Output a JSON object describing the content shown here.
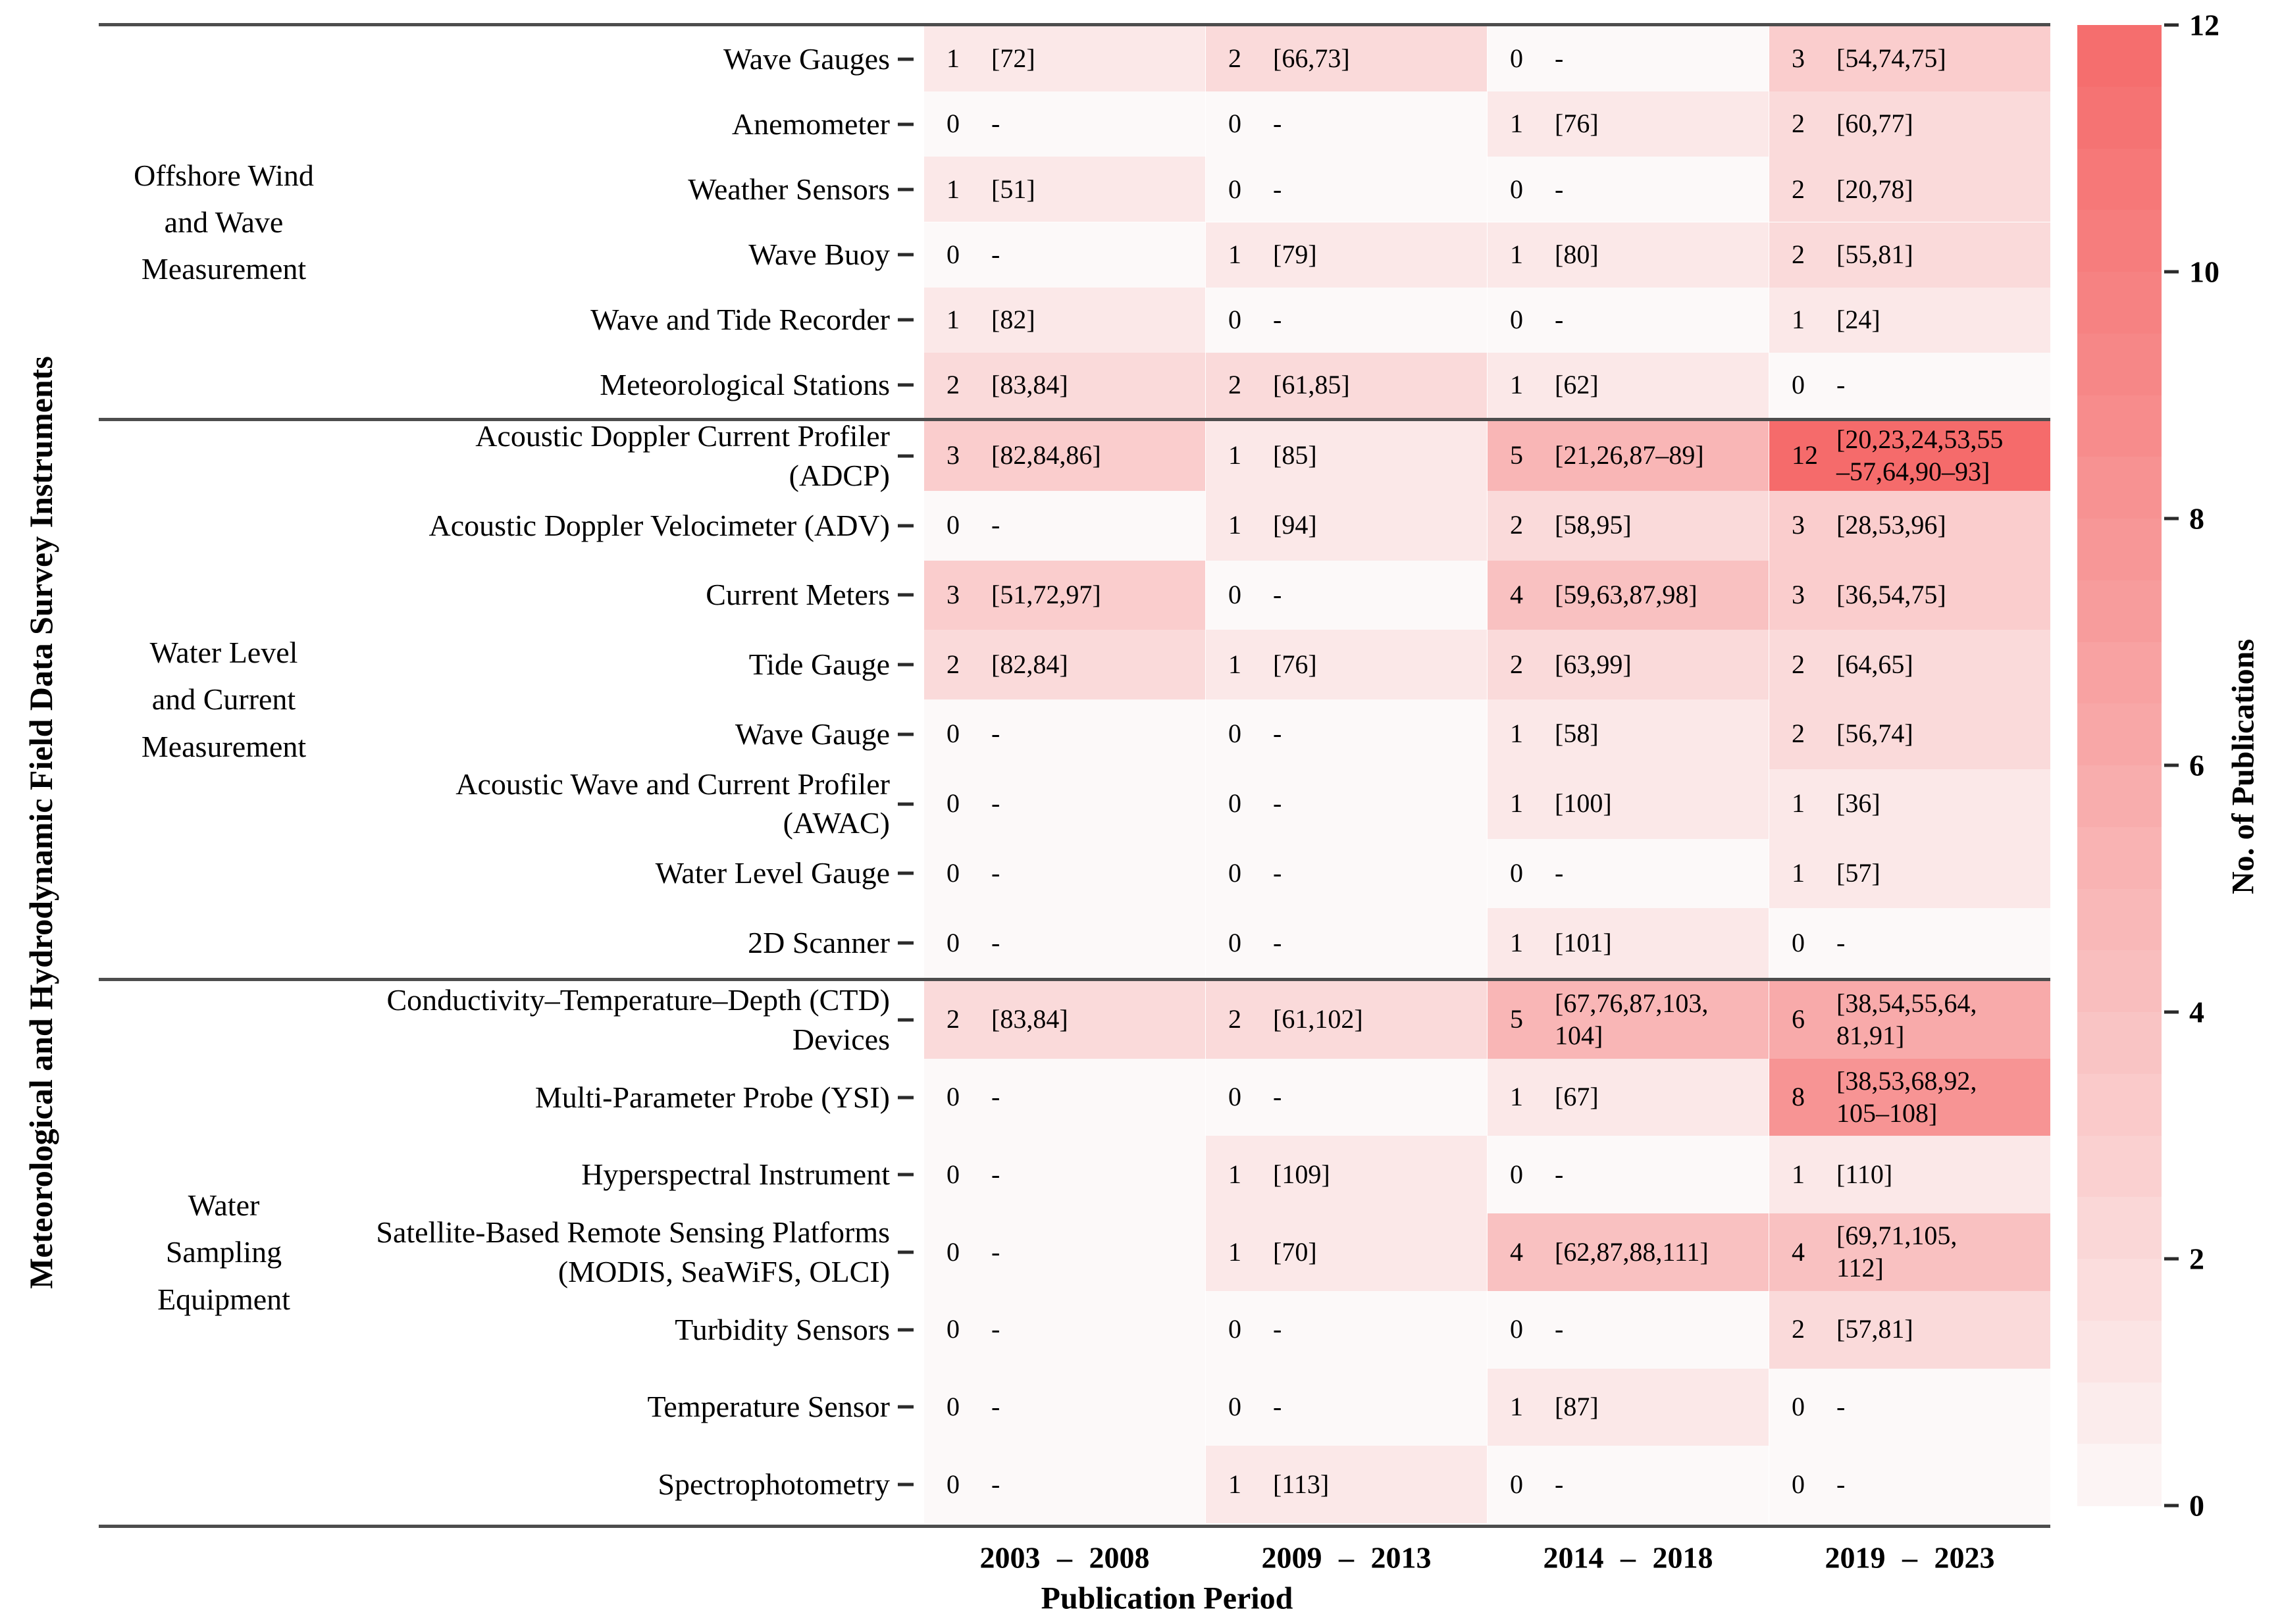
{
  "chart_data": {
    "type": "heatmap",
    "xlabel": "Publication Period",
    "ylabel": "Meteorological and Hydrodynamic Field Data Survey Instruments",
    "x_categories": [
      "2003 – 2008",
      "2009 – 2013",
      "2014 – 2018",
      "2019 – 2023"
    ],
    "colorbar": {
      "label": "No. of Publications",
      "ticks": [
        12,
        10,
        8,
        6,
        4,
        2,
        0
      ],
      "vmin": 0,
      "vmax": 12,
      "color_low": "#fcf9f9",
      "color_high": "#f56b6b",
      "steps": 24
    },
    "legend_position": "right",
    "grid": false,
    "row_groups": [
      {
        "label": "Offshore Wind\nand Wave\nMeasurement",
        "rows": [
          {
            "label": "Wave Gauges",
            "values": [
              1,
              2,
              0,
              3
            ],
            "refs": [
              "[72]",
              "[66,73]",
              "-",
              "[54,74,75]"
            ]
          },
          {
            "label": "Anemometer",
            "values": [
              0,
              0,
              1,
              2
            ],
            "refs": [
              "-",
              "-",
              "[76]",
              "[60,77]"
            ]
          },
          {
            "label": "Weather Sensors",
            "values": [
              1,
              0,
              0,
              2
            ],
            "refs": [
              "[51]",
              "-",
              "-",
              "[20,78]"
            ]
          },
          {
            "label": "Wave Buoy",
            "values": [
              0,
              1,
              1,
              2
            ],
            "refs": [
              "-",
              "[79]",
              "[80]",
              "[55,81]"
            ]
          },
          {
            "label": "Wave and Tide Recorder",
            "values": [
              1,
              0,
              0,
              1
            ],
            "refs": [
              "[82]",
              "-",
              "-",
              "[24]"
            ]
          },
          {
            "label": "Meteorological Stations",
            "values": [
              2,
              2,
              1,
              0
            ],
            "refs": [
              "[83,84]",
              "[61,85]",
              "[62]",
              "-"
            ]
          }
        ]
      },
      {
        "label": "Water Level\nand Current\nMeasurement",
        "rows": [
          {
            "label": "Acoustic Doppler Current Profiler\n(ADCP)",
            "values": [
              3,
              1,
              5,
              12
            ],
            "refs": [
              "[82,84,86]",
              "[85]",
              "[21,26,87–89]",
              "[20,23,24,53,55\n–57,64,90–93]"
            ]
          },
          {
            "label": "Acoustic Doppler Velocimeter (ADV)",
            "values": [
              0,
              1,
              2,
              3
            ],
            "refs": [
              "-",
              "[94]",
              "[58,95]",
              "[28,53,96]"
            ]
          },
          {
            "label": "Current Meters",
            "values": [
              3,
              0,
              4,
              3
            ],
            "refs": [
              "[51,72,97]",
              "-",
              "[59,63,87,98]",
              "[36,54,75]"
            ]
          },
          {
            "label": "Tide Gauge",
            "values": [
              2,
              1,
              2,
              2
            ],
            "refs": [
              "[82,84]",
              "[76]",
              "[63,99]",
              "[64,65]"
            ]
          },
          {
            "label": "Wave Gauge",
            "values": [
              0,
              0,
              1,
              2
            ],
            "refs": [
              "-",
              "-",
              "[58]",
              "[56,74]"
            ]
          },
          {
            "label": "Acoustic Wave and Current Profiler\n(AWAC)",
            "values": [
              0,
              0,
              1,
              1
            ],
            "refs": [
              "-",
              "-",
              "[100]",
              "[36]"
            ]
          },
          {
            "label": "Water Level Gauge",
            "values": [
              0,
              0,
              0,
              1
            ],
            "refs": [
              "-",
              "-",
              "-",
              "[57]"
            ]
          },
          {
            "label": "2D Scanner",
            "values": [
              0,
              0,
              1,
              0
            ],
            "refs": [
              "-",
              "-",
              "[101]",
              "-"
            ]
          }
        ]
      },
      {
        "label": "Water\nSampling\nEquipment",
        "rows": [
          {
            "label": "Conductivity–Temperature–Depth (CTD)\nDevices",
            "values": [
              2,
              2,
              5,
              6
            ],
            "refs": [
              "[83,84]",
              "[61,102]",
              "[67,76,87,103,\n104]",
              "[38,54,55,64,\n81,91]"
            ]
          },
          {
            "label": "Multi-Parameter Probe (YSI)",
            "values": [
              0,
              0,
              1,
              8
            ],
            "refs": [
              "-",
              "-",
              "[67]",
              "[38,53,68,92,\n105–108]"
            ]
          },
          {
            "label": "Hyperspectral Instrument",
            "values": [
              0,
              1,
              0,
              1
            ],
            "refs": [
              "-",
              "[109]",
              "-",
              "[110]"
            ]
          },
          {
            "label": "Satellite-Based Remote Sensing Platforms\n(MODIS, SeaWiFS, OLCI)",
            "values": [
              0,
              1,
              4,
              4
            ],
            "refs": [
              "-",
              "[70]",
              "[62,87,88,111]",
              "[69,71,105,\n112]"
            ]
          },
          {
            "label": "Turbidity Sensors",
            "values": [
              0,
              0,
              0,
              2
            ],
            "refs": [
              "-",
              "-",
              "-",
              "[57,81]"
            ]
          },
          {
            "label": "Temperature Sensor",
            "values": [
              0,
              0,
              1,
              0
            ],
            "refs": [
              "-",
              "-",
              "[87]",
              "-"
            ]
          },
          {
            "label": "Spectrophotometry",
            "values": [
              0,
              1,
              0,
              0
            ],
            "refs": [
              "-",
              "[113]",
              "-",
              "-"
            ]
          }
        ]
      }
    ]
  }
}
